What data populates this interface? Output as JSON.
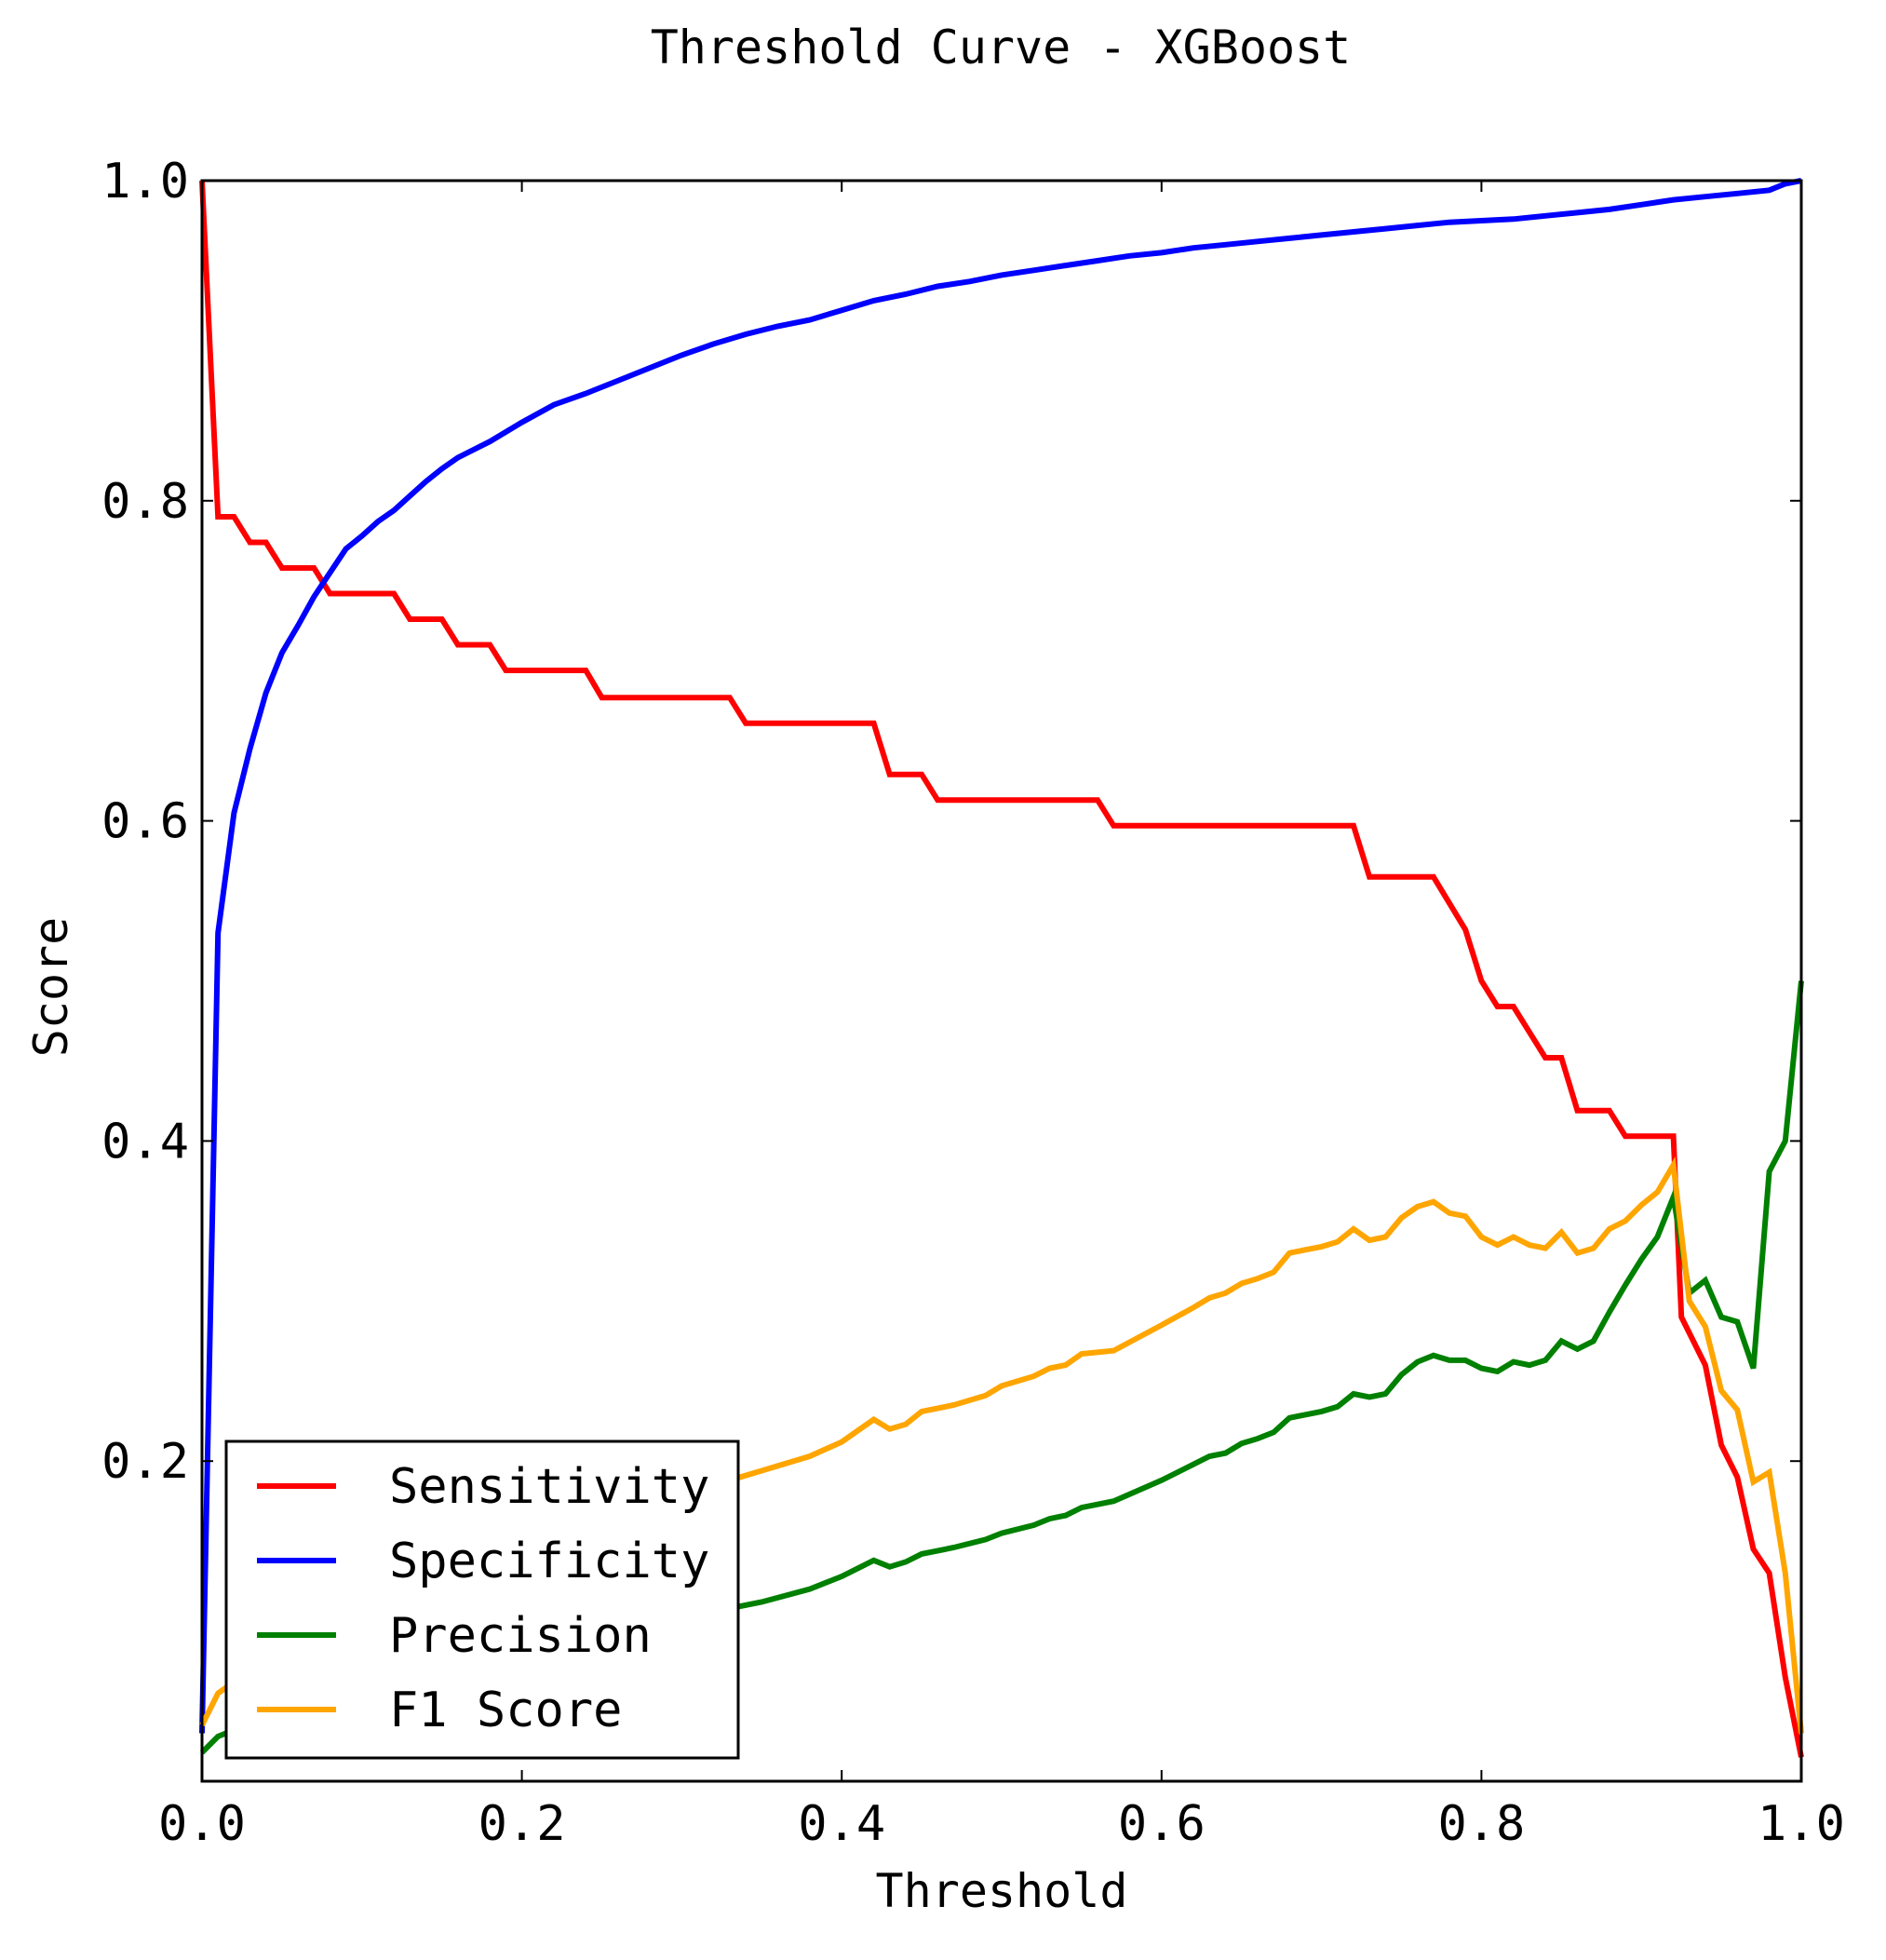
{
  "chart_data": {
    "type": "line",
    "title": "Threshold Curve - XGBoost",
    "xlabel": "Threshold",
    "ylabel": "Score",
    "xlim": [
      0.0,
      1.0
    ],
    "ylim": [
      0.0,
      1.0
    ],
    "x_ticks": [
      "0.0",
      "0.2",
      "0.4",
      "0.6",
      "0.8",
      "1.0"
    ],
    "y_ticks": [
      "0.2",
      "0.4",
      "0.6",
      "0.8",
      "1.0"
    ],
    "grid": false,
    "legend_position": "lower-left",
    "series": [
      {
        "name": "Sensitivity",
        "color": "#ff0000",
        "points": [
          [
            0.0,
            1.0
          ],
          [
            0.01,
            0.79
          ],
          [
            0.02,
            0.79
          ],
          [
            0.03,
            0.774
          ],
          [
            0.04,
            0.774
          ],
          [
            0.05,
            0.758
          ],
          [
            0.07,
            0.758
          ],
          [
            0.08,
            0.742
          ],
          [
            0.12,
            0.742
          ],
          [
            0.13,
            0.726
          ],
          [
            0.15,
            0.726
          ],
          [
            0.16,
            0.71
          ],
          [
            0.18,
            0.71
          ],
          [
            0.19,
            0.694
          ],
          [
            0.24,
            0.694
          ],
          [
            0.25,
            0.677
          ],
          [
            0.33,
            0.677
          ],
          [
            0.34,
            0.661
          ],
          [
            0.42,
            0.661
          ],
          [
            0.43,
            0.629
          ],
          [
            0.45,
            0.629
          ],
          [
            0.46,
            0.613
          ],
          [
            0.56,
            0.613
          ],
          [
            0.57,
            0.597
          ],
          [
            0.72,
            0.597
          ],
          [
            0.73,
            0.565
          ],
          [
            0.77,
            0.565
          ],
          [
            0.79,
            0.532
          ],
          [
            0.8,
            0.5
          ],
          [
            0.81,
            0.484
          ],
          [
            0.82,
            0.484
          ],
          [
            0.84,
            0.452
          ],
          [
            0.85,
            0.452
          ],
          [
            0.86,
            0.419
          ],
          [
            0.88,
            0.419
          ],
          [
            0.89,
            0.403
          ],
          [
            0.92,
            0.403
          ],
          [
            0.925,
            0.29
          ],
          [
            0.94,
            0.26
          ],
          [
            0.95,
            0.21
          ],
          [
            0.96,
            0.19
          ],
          [
            0.97,
            0.145
          ],
          [
            0.98,
            0.13
          ],
          [
            0.99,
            0.065
          ],
          [
            1.0,
            0.015
          ]
        ]
      },
      {
        "name": "Specificity",
        "color": "#0000ff",
        "points": [
          [
            0.0,
            0.03
          ],
          [
            0.01,
            0.53
          ],
          [
            0.02,
            0.605
          ],
          [
            0.03,
            0.645
          ],
          [
            0.04,
            0.68
          ],
          [
            0.05,
            0.705
          ],
          [
            0.06,
            0.722
          ],
          [
            0.07,
            0.74
          ],
          [
            0.08,
            0.755
          ],
          [
            0.09,
            0.77
          ],
          [
            0.1,
            0.778
          ],
          [
            0.11,
            0.787
          ],
          [
            0.12,
            0.794
          ],
          [
            0.13,
            0.803
          ],
          [
            0.14,
            0.812
          ],
          [
            0.15,
            0.82
          ],
          [
            0.16,
            0.827
          ],
          [
            0.18,
            0.837
          ],
          [
            0.2,
            0.849
          ],
          [
            0.22,
            0.86
          ],
          [
            0.24,
            0.867
          ],
          [
            0.26,
            0.875
          ],
          [
            0.28,
            0.883
          ],
          [
            0.3,
            0.891
          ],
          [
            0.32,
            0.898
          ],
          [
            0.34,
            0.904
          ],
          [
            0.36,
            0.909
          ],
          [
            0.38,
            0.913
          ],
          [
            0.4,
            0.919
          ],
          [
            0.42,
            0.925
          ],
          [
            0.44,
            0.929
          ],
          [
            0.46,
            0.934
          ],
          [
            0.48,
            0.937
          ],
          [
            0.5,
            0.941
          ],
          [
            0.52,
            0.944
          ],
          [
            0.54,
            0.947
          ],
          [
            0.56,
            0.95
          ],
          [
            0.58,
            0.953
          ],
          [
            0.6,
            0.955
          ],
          [
            0.62,
            0.958
          ],
          [
            0.64,
            0.96
          ],
          [
            0.66,
            0.962
          ],
          [
            0.68,
            0.964
          ],
          [
            0.7,
            0.966
          ],
          [
            0.72,
            0.968
          ],
          [
            0.74,
            0.97
          ],
          [
            0.76,
            0.972
          ],
          [
            0.78,
            0.974
          ],
          [
            0.8,
            0.975
          ],
          [
            0.82,
            0.976
          ],
          [
            0.84,
            0.978
          ],
          [
            0.86,
            0.98
          ],
          [
            0.88,
            0.982
          ],
          [
            0.9,
            0.985
          ],
          [
            0.92,
            0.988
          ],
          [
            0.94,
            0.99
          ],
          [
            0.96,
            0.992
          ],
          [
            0.98,
            0.994
          ],
          [
            0.99,
            0.998
          ],
          [
            1.0,
            1.0
          ]
        ]
      },
      {
        "name": "Precision",
        "color": "#008000",
        "points": [
          [
            0.0,
            0.018
          ],
          [
            0.01,
            0.028
          ],
          [
            0.02,
            0.032
          ],
          [
            0.05,
            0.04
          ],
          [
            0.1,
            0.055
          ],
          [
            0.15,
            0.07
          ],
          [
            0.2,
            0.082
          ],
          [
            0.25,
            0.093
          ],
          [
            0.3,
            0.102
          ],
          [
            0.33,
            0.108
          ],
          [
            0.35,
            0.112
          ],
          [
            0.38,
            0.12
          ],
          [
            0.4,
            0.128
          ],
          [
            0.41,
            0.133
          ],
          [
            0.42,
            0.138
          ],
          [
            0.43,
            0.134
          ],
          [
            0.44,
            0.137
          ],
          [
            0.45,
            0.142
          ],
          [
            0.47,
            0.146
          ],
          [
            0.49,
            0.151
          ],
          [
            0.5,
            0.155
          ],
          [
            0.52,
            0.16
          ],
          [
            0.53,
            0.164
          ],
          [
            0.54,
            0.166
          ],
          [
            0.55,
            0.171
          ],
          [
            0.57,
            0.175
          ],
          [
            0.6,
            0.188
          ],
          [
            0.62,
            0.198
          ],
          [
            0.63,
            0.203
          ],
          [
            0.64,
            0.205
          ],
          [
            0.65,
            0.211
          ],
          [
            0.66,
            0.214
          ],
          [
            0.67,
            0.218
          ],
          [
            0.68,
            0.227
          ],
          [
            0.7,
            0.231
          ],
          [
            0.71,
            0.234
          ],
          [
            0.72,
            0.242
          ],
          [
            0.73,
            0.24
          ],
          [
            0.74,
            0.242
          ],
          [
            0.75,
            0.254
          ],
          [
            0.76,
            0.262
          ],
          [
            0.77,
            0.266
          ],
          [
            0.78,
            0.263
          ],
          [
            0.79,
            0.263
          ],
          [
            0.8,
            0.258
          ],
          [
            0.81,
            0.256
          ],
          [
            0.82,
            0.262
          ],
          [
            0.83,
            0.26
          ],
          [
            0.84,
            0.263
          ],
          [
            0.85,
            0.275
          ],
          [
            0.86,
            0.27
          ],
          [
            0.87,
            0.275
          ],
          [
            0.88,
            0.293
          ],
          [
            0.89,
            0.31
          ],
          [
            0.9,
            0.326
          ],
          [
            0.91,
            0.34
          ],
          [
            0.92,
            0.365
          ],
          [
            0.93,
            0.305
          ],
          [
            0.94,
            0.313
          ],
          [
            0.95,
            0.29
          ],
          [
            0.96,
            0.287
          ],
          [
            0.97,
            0.258
          ],
          [
            0.98,
            0.381
          ],
          [
            0.99,
            0.4
          ],
          [
            1.0,
            0.5
          ]
        ]
      },
      {
        "name": "F1 Score",
        "color": "#ffa500",
        "points": [
          [
            0.0,
            0.035
          ],
          [
            0.01,
            0.055
          ],
          [
            0.02,
            0.062
          ],
          [
            0.05,
            0.078
          ],
          [
            0.1,
            0.103
          ],
          [
            0.15,
            0.128
          ],
          [
            0.2,
            0.15
          ],
          [
            0.25,
            0.168
          ],
          [
            0.3,
            0.182
          ],
          [
            0.33,
            0.188
          ],
          [
            0.35,
            0.194
          ],
          [
            0.38,
            0.203
          ],
          [
            0.4,
            0.212
          ],
          [
            0.41,
            0.219
          ],
          [
            0.42,
            0.226
          ],
          [
            0.43,
            0.22
          ],
          [
            0.44,
            0.223
          ],
          [
            0.45,
            0.231
          ],
          [
            0.47,
            0.235
          ],
          [
            0.49,
            0.241
          ],
          [
            0.5,
            0.247
          ],
          [
            0.52,
            0.253
          ],
          [
            0.53,
            0.258
          ],
          [
            0.54,
            0.26
          ],
          [
            0.55,
            0.267
          ],
          [
            0.57,
            0.269
          ],
          [
            0.6,
            0.285
          ],
          [
            0.62,
            0.296
          ],
          [
            0.63,
            0.302
          ],
          [
            0.64,
            0.305
          ],
          [
            0.65,
            0.311
          ],
          [
            0.66,
            0.314
          ],
          [
            0.67,
            0.318
          ],
          [
            0.68,
            0.33
          ],
          [
            0.7,
            0.334
          ],
          [
            0.71,
            0.337
          ],
          [
            0.72,
            0.345
          ],
          [
            0.73,
            0.338
          ],
          [
            0.74,
            0.34
          ],
          [
            0.75,
            0.352
          ],
          [
            0.76,
            0.359
          ],
          [
            0.77,
            0.362
          ],
          [
            0.78,
            0.355
          ],
          [
            0.79,
            0.353
          ],
          [
            0.8,
            0.34
          ],
          [
            0.81,
            0.335
          ],
          [
            0.82,
            0.34
          ],
          [
            0.83,
            0.335
          ],
          [
            0.84,
            0.333
          ],
          [
            0.85,
            0.343
          ],
          [
            0.86,
            0.33
          ],
          [
            0.87,
            0.333
          ],
          [
            0.88,
            0.345
          ],
          [
            0.89,
            0.35
          ],
          [
            0.9,
            0.36
          ],
          [
            0.91,
            0.368
          ],
          [
            0.92,
            0.385
          ],
          [
            0.93,
            0.3
          ],
          [
            0.94,
            0.284
          ],
          [
            0.95,
            0.244
          ],
          [
            0.96,
            0.232
          ],
          [
            0.97,
            0.187
          ],
          [
            0.98,
            0.193
          ],
          [
            0.99,
            0.13
          ],
          [
            1.0,
            0.03
          ]
        ]
      }
    ]
  }
}
